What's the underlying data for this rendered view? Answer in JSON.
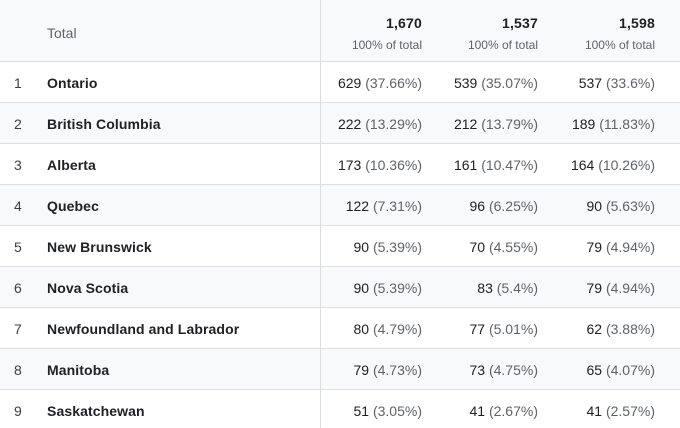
{
  "header": {
    "total_label": "Total",
    "columns": [
      {
        "value": "1,670",
        "sub": "100% of total"
      },
      {
        "value": "1,537",
        "sub": "100% of total"
      },
      {
        "value": "1,598",
        "sub": "100% of total"
      }
    ]
  },
  "rows": [
    {
      "index": "1",
      "name": "Ontario",
      "cells": [
        {
          "num": "629",
          "pct": "(37.66%)"
        },
        {
          "num": "539",
          "pct": "(35.07%)"
        },
        {
          "num": "537",
          "pct": "(33.6%)"
        }
      ]
    },
    {
      "index": "2",
      "name": "British Columbia",
      "cells": [
        {
          "num": "222",
          "pct": "(13.29%)"
        },
        {
          "num": "212",
          "pct": "(13.79%)"
        },
        {
          "num": "189",
          "pct": "(11.83%)"
        }
      ]
    },
    {
      "index": "3",
      "name": "Alberta",
      "cells": [
        {
          "num": "173",
          "pct": "(10.36%)"
        },
        {
          "num": "161",
          "pct": "(10.47%)"
        },
        {
          "num": "164",
          "pct": "(10.26%)"
        }
      ]
    },
    {
      "index": "4",
      "name": "Quebec",
      "cells": [
        {
          "num": "122",
          "pct": "(7.31%)"
        },
        {
          "num": "96",
          "pct": "(6.25%)"
        },
        {
          "num": "90",
          "pct": "(5.63%)"
        }
      ]
    },
    {
      "index": "5",
      "name": "New Brunswick",
      "cells": [
        {
          "num": "90",
          "pct": "(5.39%)"
        },
        {
          "num": "70",
          "pct": "(4.55%)"
        },
        {
          "num": "79",
          "pct": "(4.94%)"
        }
      ]
    },
    {
      "index": "6",
      "name": "Nova Scotia",
      "cells": [
        {
          "num": "90",
          "pct": "(5.39%)"
        },
        {
          "num": "83",
          "pct": "(5.4%)"
        },
        {
          "num": "79",
          "pct": "(4.94%)"
        }
      ]
    },
    {
      "index": "7",
      "name": "Newfoundland and Labrador",
      "cells": [
        {
          "num": "80",
          "pct": "(4.79%)"
        },
        {
          "num": "77",
          "pct": "(5.01%)"
        },
        {
          "num": "62",
          "pct": "(3.88%)"
        }
      ]
    },
    {
      "index": "8",
      "name": "Manitoba",
      "cells": [
        {
          "num": "79",
          "pct": "(4.73%)"
        },
        {
          "num": "73",
          "pct": "(4.75%)"
        },
        {
          "num": "65",
          "pct": "(4.07%)"
        }
      ]
    },
    {
      "index": "9",
      "name": "Saskatchewan",
      "cells": [
        {
          "num": "51",
          "pct": "(3.05%)"
        },
        {
          "num": "41",
          "pct": "(2.67%)"
        },
        {
          "num": "41",
          "pct": "(2.57%)"
        }
      ]
    }
  ]
}
